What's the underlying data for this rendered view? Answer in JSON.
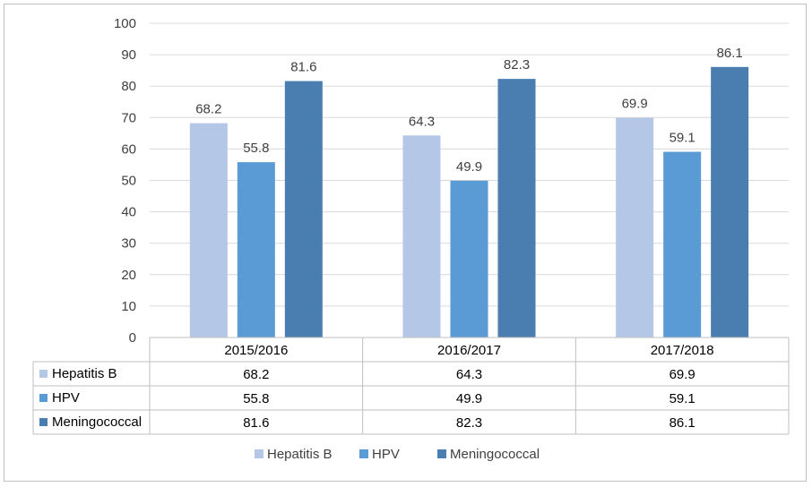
{
  "chart_data": {
    "type": "bar",
    "categories": [
      "2015/2016",
      "2016/2017",
      "2017/2018"
    ],
    "series": [
      {
        "name": "Hepatitis B",
        "values": [
          68.2,
          64.3,
          69.9
        ],
        "color": "#b4c7e7"
      },
      {
        "name": "HPV",
        "values": [
          55.8,
          49.9,
          59.1
        ],
        "color": "#5b9bd5"
      },
      {
        "name": "Meningococcal",
        "values": [
          81.6,
          82.3,
          86.1
        ],
        "color": "#4a7eb0"
      }
    ],
    "ylim": [
      0,
      100
    ],
    "yticks": [
      0,
      10,
      20,
      30,
      40,
      50,
      60,
      70,
      80,
      90,
      100
    ],
    "grid": true,
    "data_table": true,
    "legend_position": "bottom"
  }
}
